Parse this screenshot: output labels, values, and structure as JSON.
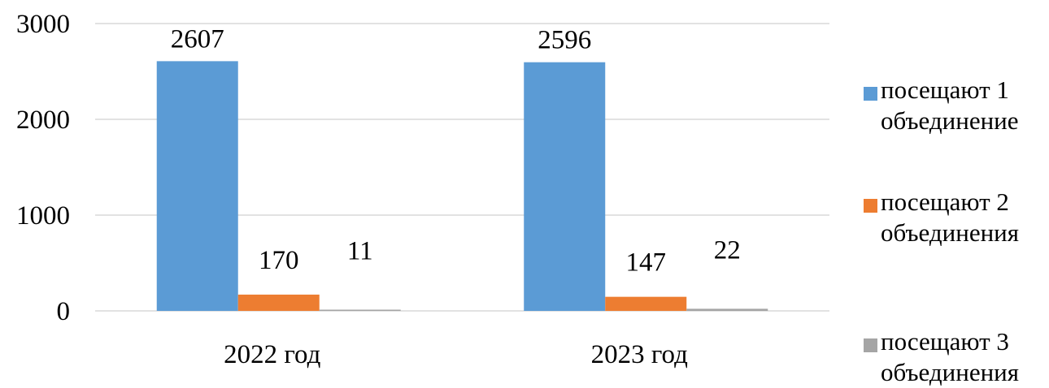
{
  "chart_data": {
    "type": "bar",
    "title": "",
    "xlabel": "",
    "ylabel": "",
    "categories": [
      "2022 год",
      "2023 год"
    ],
    "series": [
      {
        "name": "посещают 1 объединение",
        "values": [
          2607,
          2596
        ],
        "color": "#5b9bd5"
      },
      {
        "name": "посещают 2 объединения",
        "values": [
          170,
          147
        ],
        "color": "#ed7d31"
      },
      {
        "name": "посещают 3 объединения",
        "values": [
          11,
          22
        ],
        "color": "#a5a5a5"
      }
    ],
    "ylim": [
      0,
      3000
    ],
    "yticks": [
      "0",
      "1000",
      "2000",
      "3000"
    ],
    "data_labels": [
      [
        "2607",
        "2596"
      ],
      [
        "170",
        "147"
      ],
      [
        "11",
        "22"
      ]
    ],
    "grid": true,
    "legend_position": "right"
  }
}
